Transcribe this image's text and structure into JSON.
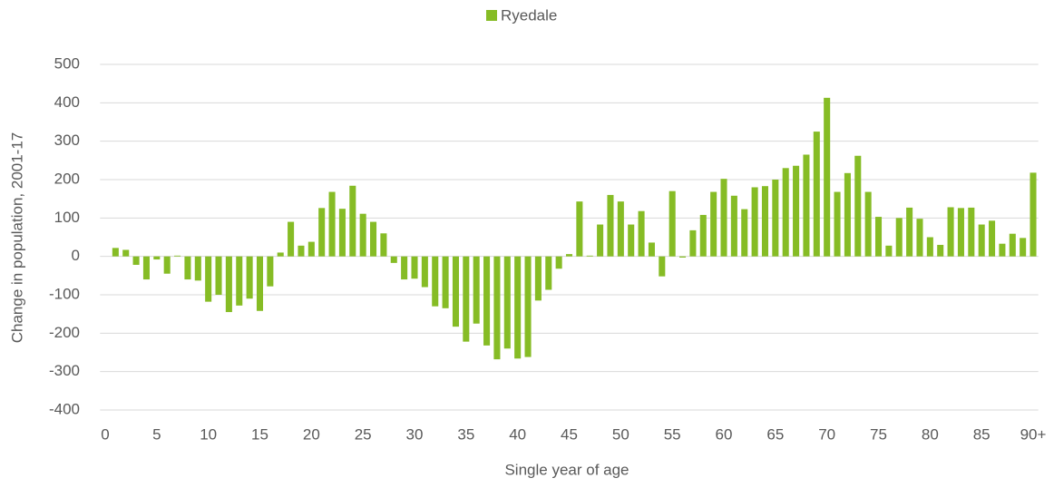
{
  "chart_data": {
    "type": "bar",
    "x_label": "Single year of age",
    "y_label": "Change in population, 2001-17",
    "categories": [
      "0",
      null,
      null,
      null,
      null,
      "5",
      null,
      null,
      null,
      null,
      "10",
      null,
      null,
      null,
      null,
      "15",
      null,
      null,
      null,
      null,
      "20",
      null,
      null,
      null,
      null,
      "25",
      null,
      null,
      null,
      null,
      "30",
      null,
      null,
      null,
      null,
      "35",
      null,
      null,
      null,
      null,
      "40",
      null,
      null,
      null,
      null,
      "45",
      null,
      null,
      null,
      null,
      "50",
      null,
      null,
      null,
      null,
      "55",
      null,
      null,
      null,
      null,
      "60",
      null,
      null,
      null,
      null,
      "65",
      null,
      null,
      null,
      null,
      "70",
      null,
      null,
      null,
      null,
      "75",
      null,
      null,
      null,
      null,
      "80",
      null,
      null,
      null,
      null,
      "85",
      null,
      null,
      null,
      null,
      "90+"
    ],
    "series": [
      {
        "name": "Ryedale",
        "color": "#86bc25",
        "values": [
          0,
          22,
          17,
          -22,
          -60,
          -8,
          -45,
          2,
          -60,
          -63,
          -118,
          -100,
          -145,
          -128,
          -110,
          -142,
          -78,
          10,
          90,
          28,
          38,
          126,
          168,
          124,
          184,
          111,
          90,
          60,
          -17,
          -60,
          -58,
          -80,
          -130,
          -135,
          -183,
          -222,
          -175,
          -232,
          -268,
          -240,
          -266,
          -262,
          -115,
          -87,
          -32,
          6,
          143,
          2,
          83,
          160,
          143,
          83,
          118,
          36,
          -52,
          170,
          -3,
          68,
          108,
          168,
          202,
          158,
          123,
          180,
          183,
          200,
          230,
          236,
          265,
          325,
          413,
          168,
          217,
          262,
          168,
          103,
          28,
          100,
          127,
          98,
          50,
          30,
          128,
          126,
          127,
          83,
          93,
          33,
          59,
          48,
          218
        ]
      }
    ],
    "ylim": [
      -400,
      500
    ],
    "yticks": [
      -400,
      -300,
      -200,
      -100,
      0,
      100,
      200,
      300,
      400,
      500
    ],
    "grid": true,
    "legend": "top"
  }
}
